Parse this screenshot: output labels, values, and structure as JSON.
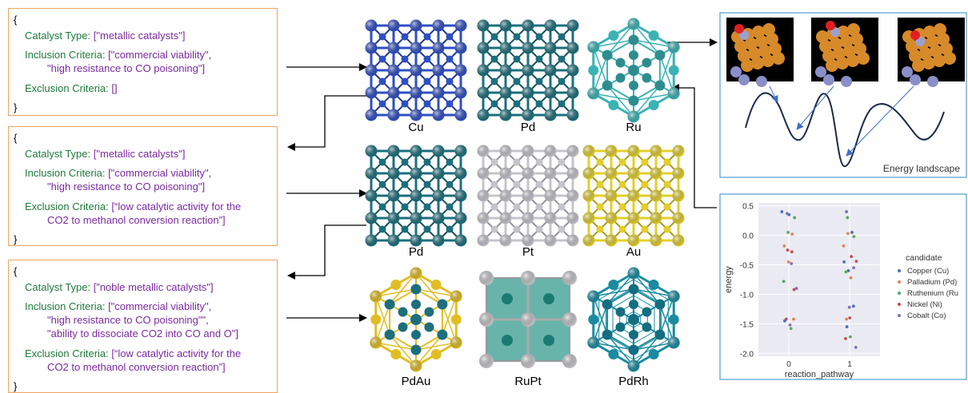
{
  "panels": [
    {
      "open": "{",
      "type_key": "Catalyst Type:",
      "type_val": "[\"metallic catalysts\"]",
      "incl_key": "Inclusion Criteria:",
      "incl_lines": [
        "[\"commercial viability\",",
        "\"high resistance to CO poisoning\"]"
      ],
      "excl_key": "Exclusion Criteria:",
      "excl_lines": [
        "[]"
      ],
      "close": "}"
    },
    {
      "open": "{",
      "type_key": "Catalyst Type:",
      "type_val": "[\"metallic catalysts\"]",
      "incl_key": "Inclusion Criteria:",
      "incl_lines": [
        "[\"commercial viability\",",
        "\"high resistance to CO poisoning\"]"
      ],
      "excl_key": "Exclusion Criteria:",
      "excl_lines": [
        "[“low catalytic activity for the",
        "CO2 to methanol conversion reaction”]"
      ],
      "close": "}"
    },
    {
      "open": "{",
      "type_key": "Catalyst Type:",
      "type_val": "[”noble metallic catalysts\"]",
      "incl_key": "Inclusion Criteria:",
      "incl_lines": [
        "[\"commercial viability\",",
        "\"high resistance to CO poisoning\"\",",
        "\"ability to dissociate CO2 into CO and O\"]"
      ],
      "excl_key": "Exclusion Criteria:",
      "excl_lines": [
        "[“low catalytic activity for the",
        "CO2 to methanol conversion reaction”]"
      ],
      "close": "}"
    }
  ],
  "catalysts": [
    {
      "label": "Cu",
      "color": "#2f4fc4",
      "style": "grid"
    },
    {
      "label": "Pd",
      "color": "#1c6f7d",
      "style": "grid"
    },
    {
      "label": "Ru",
      "color": "#3bb2b4",
      "style": "hex"
    },
    {
      "label": "Pd",
      "color": "#1c6f7d",
      "style": "grid"
    },
    {
      "label": "Pt",
      "color": "#c4c4cc",
      "style": "grid"
    },
    {
      "label": "Au",
      "color": "#e3cf2a",
      "style": "grid"
    },
    {
      "label": "PdAu",
      "color": "#e2bd22",
      "style": "alloy-hex"
    },
    {
      "label": "RuPt",
      "color": "#c8c8cc",
      "style": "alloy-cube"
    },
    {
      "label": "PdRh",
      "color": "#1a8ba0",
      "style": "dense-hex"
    }
  ],
  "energy_landscape": {
    "label": "Energy landscape"
  },
  "chart_data": {
    "type": "scatter",
    "xlabel": "reaction_pathway",
    "ylabel": "energy",
    "x_ticks": [
      "0",
      "1"
    ],
    "y_ticks": [
      "0.5",
      "0.0",
      "-0.5",
      "-1.0",
      "-1.5",
      "-2.0"
    ],
    "ylim": [
      -2.05,
      0.55
    ],
    "grid": true,
    "legend_title": "candidate",
    "legend_position": "right",
    "series": [
      {
        "name": "Copper (Cu)",
        "color": "#4c72b0",
        "x": [
          0,
          0,
          0,
          1,
          1,
          1,
          1,
          1
        ],
        "y": [
          0.4,
          0.35,
          -1.45,
          0.05,
          -0.45,
          -0.6,
          -1.2,
          -1.55
        ]
      },
      {
        "name": "Palladium (Pd)",
        "color": "#dd8452",
        "x": [
          0,
          0,
          0,
          0,
          1,
          1,
          1,
          1
        ],
        "y": [
          0.02,
          -0.18,
          -0.45,
          -1.42,
          0.03,
          -0.18,
          -0.72,
          -1.42
        ]
      },
      {
        "name": "Ruthenium (Ru",
        "color": "#55a868",
        "x": [
          0,
          0,
          0,
          0,
          1,
          1,
          1,
          1
        ],
        "y": [
          0.3,
          0.05,
          -0.78,
          -1.58,
          0.3,
          -0.02,
          -0.62,
          -1.72
        ]
      },
      {
        "name": "Nickel (Ni)",
        "color": "#c44e52",
        "x": [
          0,
          0,
          0,
          0,
          1,
          1,
          1,
          1
        ],
        "y": [
          -0.28,
          -0.25,
          -0.92,
          -1.42,
          -0.36,
          -0.44,
          -1.4,
          -1.75
        ]
      },
      {
        "name": "Cobalt (Co)",
        "color": "#8172b3",
        "x": [
          0,
          0,
          0,
          0,
          1,
          1,
          1,
          1
        ],
        "y": [
          0.37,
          -0.48,
          -0.9,
          -1.52,
          0.4,
          -0.55,
          -1.22,
          -1.9
        ]
      }
    ]
  }
}
